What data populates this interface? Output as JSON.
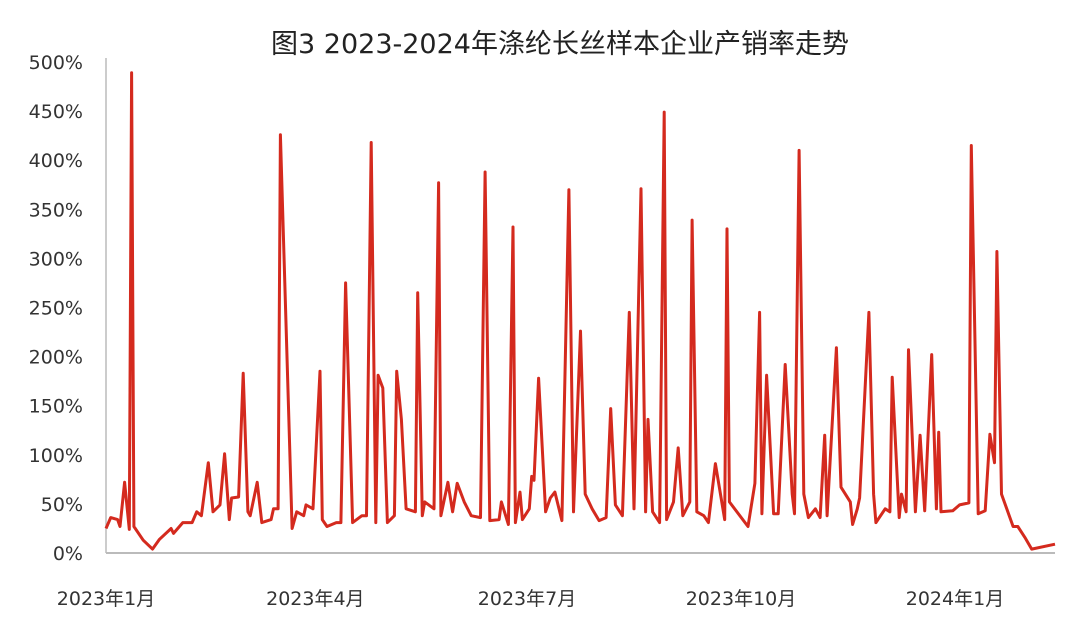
{
  "chart_data": {
    "type": "line",
    "title": "图3 2023-2024年涤纶长丝样本企业产销率走势",
    "xlabel": "",
    "ylabel": "",
    "ylim": [
      0,
      500
    ],
    "xlim": [
      "2023-01-01",
      "2024-02-13"
    ],
    "y_unit": "%",
    "grid": false,
    "line_color": "#d42a1e",
    "axis_color": "#bbbbbb",
    "yticks": [
      0,
      50,
      100,
      150,
      200,
      250,
      300,
      350,
      400,
      450,
      500
    ],
    "ytick_labels": [
      "0%",
      "50%",
      "100%",
      "150%",
      "200%",
      "250%",
      "300%",
      "350%",
      "400%",
      "450%",
      "500%"
    ],
    "xticks": [
      {
        "label": "2023年1月",
        "date": "2023-01-01"
      },
      {
        "label": "2023年4月",
        "date": "2023-04-01"
      },
      {
        "label": "2023年7月",
        "date": "2023-07-01"
      },
      {
        "label": "2023年10月",
        "date": "2023-10-01"
      },
      {
        "label": "2024年1月",
        "date": "2024-01-01"
      }
    ],
    "series": [
      {
        "points": [
          [
            "2023-01-01",
            25
          ],
          [
            "2023-01-03",
            36
          ],
          [
            "2023-01-06",
            34
          ],
          [
            "2023-01-07",
            27
          ],
          [
            "2023-01-09",
            72
          ],
          [
            "2023-01-11",
            24
          ],
          [
            "2023-01-12",
            489
          ],
          [
            "2023-01-13",
            27
          ],
          [
            "2023-01-17",
            13
          ],
          [
            "2023-01-21",
            4
          ],
          [
            "2023-01-24",
            14
          ],
          [
            "2023-01-29",
            25
          ],
          [
            "2023-01-30",
            20
          ],
          [
            "2023-02-03",
            31
          ],
          [
            "2023-02-07",
            31
          ],
          [
            "2023-02-09",
            42
          ],
          [
            "2023-02-11",
            38
          ],
          [
            "2023-02-14",
            92
          ],
          [
            "2023-02-16",
            42
          ],
          [
            "2023-02-19",
            49
          ],
          [
            "2023-02-21",
            101
          ],
          [
            "2023-02-23",
            34
          ],
          [
            "2023-02-24",
            56
          ],
          [
            "2023-02-27",
            57
          ],
          [
            "2023-03-01",
            183
          ],
          [
            "2023-03-03",
            42
          ],
          [
            "2023-03-04",
            38
          ],
          [
            "2023-03-07",
            72
          ],
          [
            "2023-03-09",
            31
          ],
          [
            "2023-03-13",
            34
          ],
          [
            "2023-03-14",
            45
          ],
          [
            "2023-03-16",
            45
          ],
          [
            "2023-03-17",
            426
          ],
          [
            "2023-03-22",
            25
          ],
          [
            "2023-03-24",
            42
          ],
          [
            "2023-03-27",
            38
          ],
          [
            "2023-03-28",
            49
          ],
          [
            "2023-03-31",
            45
          ],
          [
            "2023-04-03",
            185
          ],
          [
            "2023-04-04",
            34
          ],
          [
            "2023-04-06",
            27
          ],
          [
            "2023-04-10",
            31
          ],
          [
            "2023-04-12",
            31
          ],
          [
            "2023-04-14",
            275
          ],
          [
            "2023-04-17",
            31
          ],
          [
            "2023-04-21",
            38
          ],
          [
            "2023-04-23",
            38
          ],
          [
            "2023-04-25",
            418
          ],
          [
            "2023-04-27",
            31
          ],
          [
            "2023-04-28",
            181
          ],
          [
            "2023-04-30",
            168
          ],
          [
            "2023-05-02",
            31
          ],
          [
            "2023-05-05",
            38
          ],
          [
            "2023-05-06",
            185
          ],
          [
            "2023-05-08",
            136
          ],
          [
            "2023-05-10",
            45
          ],
          [
            "2023-05-14",
            42
          ],
          [
            "2023-05-15",
            265
          ],
          [
            "2023-05-17",
            38
          ],
          [
            "2023-05-18",
            52
          ],
          [
            "2023-05-22",
            45
          ],
          [
            "2023-05-24",
            377
          ],
          [
            "2023-05-25",
            38
          ],
          [
            "2023-05-28",
            72
          ],
          [
            "2023-05-30",
            42
          ],
          [
            "2023-06-01",
            71
          ],
          [
            "2023-06-04",
            52
          ],
          [
            "2023-06-07",
            38
          ],
          [
            "2023-06-11",
            36
          ],
          [
            "2023-06-13",
            388
          ],
          [
            "2023-06-15",
            33
          ],
          [
            "2023-06-19",
            34
          ],
          [
            "2023-06-20",
            52
          ],
          [
            "2023-06-23",
            29
          ],
          [
            "2023-06-25",
            332
          ],
          [
            "2023-06-26",
            31
          ],
          [
            "2023-06-28",
            62
          ],
          [
            "2023-06-29",
            34
          ],
          [
            "2023-07-02",
            45
          ],
          [
            "2023-07-03",
            78
          ],
          [
            "2023-07-04",
            74
          ],
          [
            "2023-07-06",
            178
          ],
          [
            "2023-07-09",
            42
          ],
          [
            "2023-07-11",
            56
          ],
          [
            "2023-07-13",
            62
          ],
          [
            "2023-07-16",
            33
          ],
          [
            "2023-07-19",
            370
          ],
          [
            "2023-07-21",
            42
          ],
          [
            "2023-07-24",
            226
          ],
          [
            "2023-07-26",
            60
          ],
          [
            "2023-07-29",
            45
          ],
          [
            "2023-08-01",
            33
          ],
          [
            "2023-08-04",
            36
          ],
          [
            "2023-08-06",
            147
          ],
          [
            "2023-08-08",
            49
          ],
          [
            "2023-08-11",
            38
          ],
          [
            "2023-08-14",
            245
          ],
          [
            "2023-08-16",
            45
          ],
          [
            "2023-08-19",
            371
          ],
          [
            "2023-08-21",
            42
          ],
          [
            "2023-08-22",
            136
          ],
          [
            "2023-08-24",
            42
          ],
          [
            "2023-08-27",
            31
          ],
          [
            "2023-08-29",
            449
          ],
          [
            "2023-08-30",
            34
          ],
          [
            "2023-09-02",
            52
          ],
          [
            "2023-09-04",
            107
          ],
          [
            "2023-09-06",
            38
          ],
          [
            "2023-09-09",
            52
          ],
          [
            "2023-09-10",
            339
          ],
          [
            "2023-09-12",
            42
          ],
          [
            "2023-09-15",
            38
          ],
          [
            "2023-09-17",
            31
          ],
          [
            "2023-09-20",
            91
          ],
          [
            "2023-09-24",
            34
          ],
          [
            "2023-09-25",
            330
          ],
          [
            "2023-09-26",
            52
          ],
          [
            "2023-10-04",
            27
          ],
          [
            "2023-10-07",
            71
          ],
          [
            "2023-10-09",
            245
          ],
          [
            "2023-10-10",
            40
          ],
          [
            "2023-10-12",
            181
          ],
          [
            "2023-10-15",
            40
          ],
          [
            "2023-10-17",
            40
          ],
          [
            "2023-10-20",
            192
          ],
          [
            "2023-10-23",
            60
          ],
          [
            "2023-10-24",
            40
          ],
          [
            "2023-10-26",
            410
          ],
          [
            "2023-10-28",
            60
          ],
          [
            "2023-10-30",
            36
          ],
          [
            "2023-11-02",
            45
          ],
          [
            "2023-11-04",
            36
          ],
          [
            "2023-11-06",
            120
          ],
          [
            "2023-11-07",
            38
          ],
          [
            "2023-11-11",
            209
          ],
          [
            "2023-11-13",
            67
          ],
          [
            "2023-11-17",
            52
          ],
          [
            "2023-11-18",
            29
          ],
          [
            "2023-11-20",
            45
          ],
          [
            "2023-11-21",
            56
          ],
          [
            "2023-11-25",
            245
          ],
          [
            "2023-11-27",
            60
          ],
          [
            "2023-11-28",
            31
          ],
          [
            "2023-12-02",
            45
          ],
          [
            "2023-12-04",
            42
          ],
          [
            "2023-12-05",
            179
          ],
          [
            "2023-12-08",
            36
          ],
          [
            "2023-12-09",
            60
          ],
          [
            "2023-12-11",
            42
          ],
          [
            "2023-12-12",
            207
          ],
          [
            "2023-12-15",
            42
          ],
          [
            "2023-12-17",
            120
          ],
          [
            "2023-12-19",
            43
          ],
          [
            "2023-12-22",
            202
          ],
          [
            "2023-12-24",
            45
          ],
          [
            "2023-12-25",
            123
          ],
          [
            "2023-12-26",
            42
          ],
          [
            "2023-12-31",
            43
          ],
          [
            "2024-01-03",
            49
          ],
          [
            "2024-01-07",
            51
          ],
          [
            "2024-01-08",
            415
          ],
          [
            "2024-01-11",
            40
          ],
          [
            "2024-01-14",
            43
          ],
          [
            "2024-01-16",
            121
          ],
          [
            "2024-01-18",
            92
          ],
          [
            "2024-01-19",
            307
          ],
          [
            "2024-01-21",
            60
          ],
          [
            "2024-01-26",
            27
          ],
          [
            "2024-01-28",
            27
          ],
          [
            "2024-01-31",
            16
          ],
          [
            "2024-02-03",
            4
          ],
          [
            "2024-02-13",
            9
          ]
        ]
      }
    ]
  }
}
